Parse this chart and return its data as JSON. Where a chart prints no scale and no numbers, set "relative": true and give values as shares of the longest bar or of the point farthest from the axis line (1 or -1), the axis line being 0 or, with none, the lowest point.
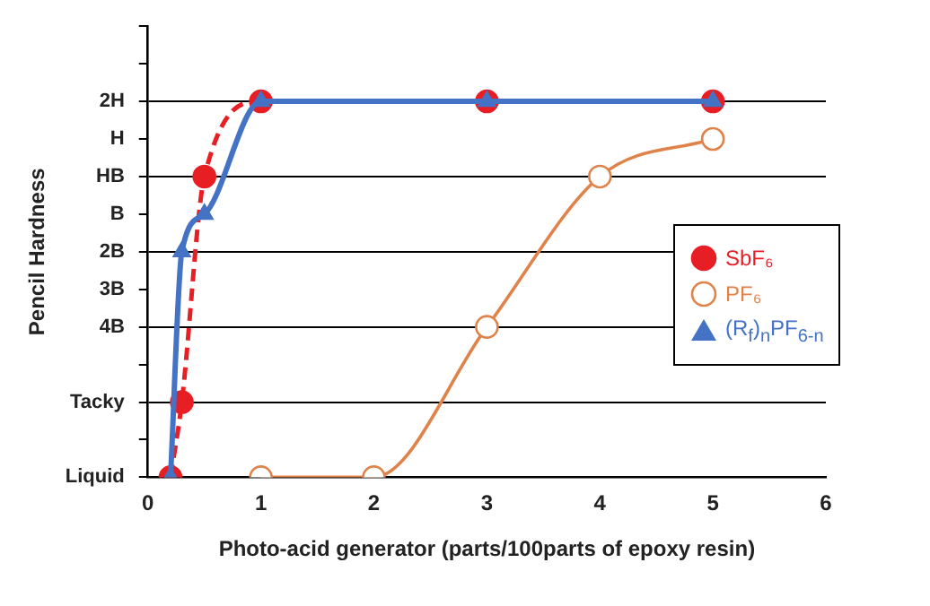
{
  "chart_data": {
    "type": "line",
    "xlabel": "Photo-acid generator (parts/100parts of epoxy resin)",
    "ylabel": "Pencil Hardness",
    "xlim": [
      0,
      6
    ],
    "xticks": [
      0,
      1,
      2,
      3,
      4,
      5,
      6
    ],
    "y_categories": [
      null,
      null,
      "2H",
      "H",
      "HB",
      "B",
      "2B",
      "3B",
      "4B",
      null,
      "Tacky",
      null,
      "Liquid"
    ],
    "grid": "y",
    "legend": "right",
    "relative": true,
    "series": [
      {
        "name": "SbF₆",
        "color": "#e81e25",
        "x": [
          0.2,
          0.3,
          0.5,
          1,
          3,
          5
        ],
        "values": [
          0,
          0.2,
          0.8,
          1,
          1,
          1
        ],
        "marker": "circle",
        "line_style": "dashed"
      },
      {
        "name": "PF₆",
        "color": "#e0834a",
        "x": [
          1,
          2,
          3,
          4,
          5
        ],
        "values": [
          0,
          0,
          0.4,
          0.8,
          0.9
        ],
        "marker": "circle",
        "line_style": "solid"
      },
      {
        "name": "(R$_{f}$)$_{n}$PF$_{6-n}$",
        "color": "#4472c4",
        "x": [
          0.2,
          0.3,
          0.5,
          1,
          3,
          5
        ],
        "values": [
          0,
          0.6,
          0.7,
          1,
          1,
          1
        ],
        "marker": "triangle",
        "line_style": "solid"
      }
    ]
  }
}
